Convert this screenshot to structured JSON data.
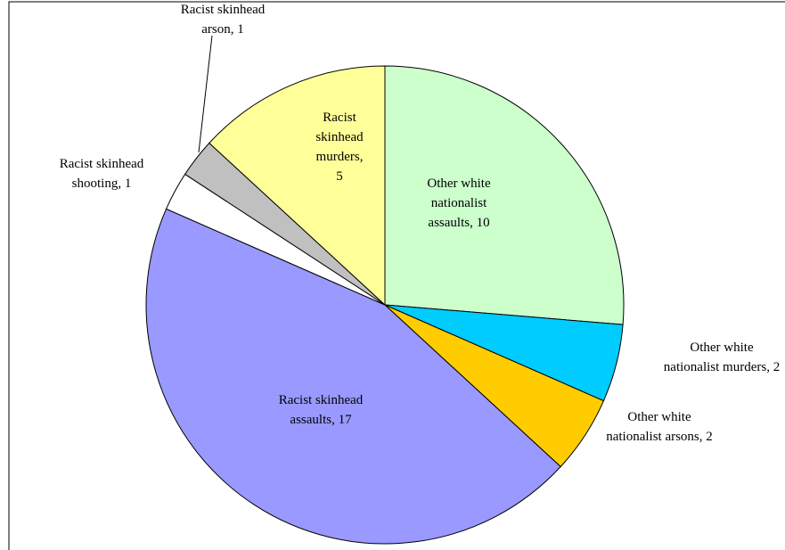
{
  "chart_data": {
    "type": "pie",
    "title": "",
    "start_angle_deg": 0,
    "direction": "clockwise",
    "slices": [
      {
        "label_lines": [
          "Other white",
          "nationalist",
          "assaults, 10"
        ],
        "category": "Other white nationalist assaults",
        "value": 10,
        "color": "#CCFFCC"
      },
      {
        "label_lines": [
          "Other white",
          "nationalist murders, 2"
        ],
        "category": "Other white nationalist murders",
        "value": 2,
        "color": "#00CCFF"
      },
      {
        "label_lines": [
          "Other white",
          "nationalist arsons, 2"
        ],
        "category": "Other white nationalist arsons",
        "value": 2,
        "color": "#FFCC00"
      },
      {
        "label_lines": [
          "Racist skinhead",
          "assaults, 17"
        ],
        "category": "Racist skinhead assaults",
        "value": 17,
        "color": "#9999FF"
      },
      {
        "label_lines": [
          "Racist skinhead",
          "shooting, 1"
        ],
        "category": "Racist skinhead shooting",
        "value": 1,
        "color": "#FFFFFF"
      },
      {
        "label_lines": [
          "Racist skinhead",
          "arson,  1"
        ],
        "category": "Racist skinhead arson",
        "value": 1,
        "color": "#C0C0C0"
      },
      {
        "label_lines": [
          "Racist",
          "skinhead",
          "murders,",
          "5"
        ],
        "category": "Racist skinhead murders",
        "value": 5,
        "color": "#FFFF99"
      }
    ]
  }
}
